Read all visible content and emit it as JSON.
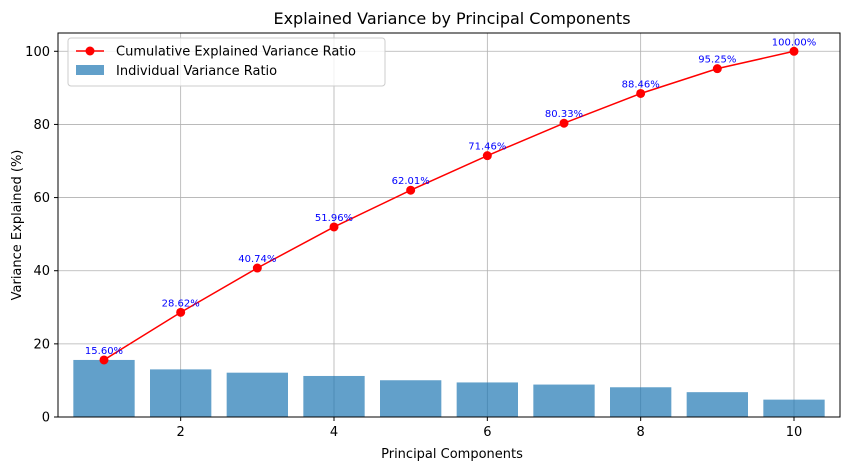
{
  "chart_data": {
    "type": "bar+line",
    "title": "Explained Variance by Principal Components",
    "xlabel": "Principal Components",
    "ylabel": "Variance Explained (%)",
    "x": [
      1,
      2,
      3,
      4,
      5,
      6,
      7,
      8,
      9,
      10
    ],
    "xlim": [
      0.4,
      10.6
    ],
    "ylim": [
      0,
      105
    ],
    "x_ticks": [
      2,
      4,
      6,
      8,
      10
    ],
    "y_ticks": [
      0,
      20,
      40,
      60,
      80,
      100
    ],
    "grid": true,
    "legend_position": "top-left",
    "series": [
      {
        "name": "Cumulative Explained Variance Ratio",
        "type": "line",
        "color": "#ff0000",
        "marker": "circle",
        "values": [
          15.6,
          28.62,
          40.74,
          51.96,
          62.01,
          71.46,
          80.33,
          88.46,
          95.25,
          100.0
        ],
        "labels": [
          "15.60%",
          "28.62%",
          "40.74%",
          "51.96%",
          "62.01%",
          "71.46%",
          "80.33%",
          "88.46%",
          "95.25%",
          "100.00%"
        ]
      },
      {
        "name": "Individual Variance Ratio",
        "type": "bar",
        "color": "#1f77b4",
        "values": [
          15.6,
          13.02,
          12.12,
          11.22,
          10.05,
          9.45,
          8.87,
          8.13,
          6.79,
          4.75
        ]
      }
    ]
  }
}
